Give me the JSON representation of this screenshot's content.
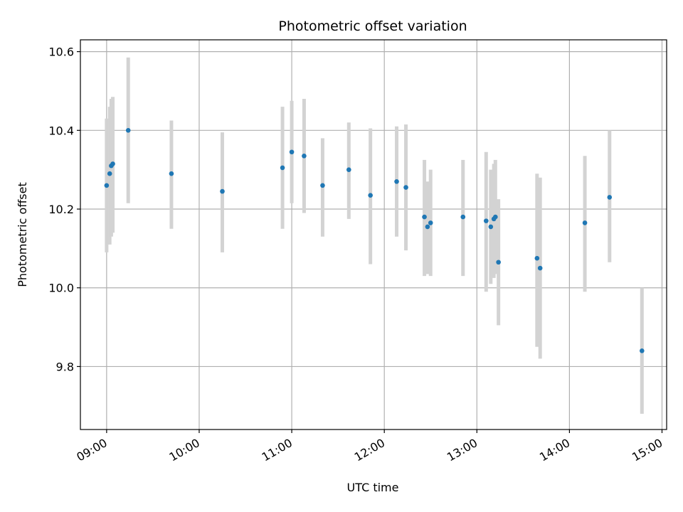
{
  "chart_data": {
    "type": "scatter",
    "title": "Photometric offset variation",
    "xlabel": "UTC time",
    "ylabel": "Photometric offset",
    "x_ticks": [
      "09:00",
      "10:00",
      "11:00",
      "12:00",
      "13:00",
      "14:00",
      "15:00"
    ],
    "y_ticks": [
      "9.8",
      "10.0",
      "10.2",
      "10.4",
      "10.6"
    ],
    "y_tick_values": [
      9.8,
      10.0,
      10.2,
      10.4,
      10.6
    ],
    "xlim": [
      "08:43",
      "15:03"
    ],
    "ylim": [
      9.64,
      10.63
    ],
    "grid": true,
    "marker_color": "#1f77b4",
    "errorbar_color": "#d3d3d3",
    "points": [
      {
        "x": "09:00",
        "y": 10.26,
        "ylow": 10.09,
        "yhigh": 10.43
      },
      {
        "x": "09:02",
        "y": 10.29,
        "ylow": 10.11,
        "yhigh": 10.46
      },
      {
        "x": "09:03",
        "y": 10.31,
        "ylow": 10.13,
        "yhigh": 10.48
      },
      {
        "x": "09:04",
        "y": 10.315,
        "ylow": 10.14,
        "yhigh": 10.485
      },
      {
        "x": "09:14",
        "y": 10.4,
        "ylow": 10.215,
        "yhigh": 10.585
      },
      {
        "x": "09:42",
        "y": 10.29,
        "ylow": 10.15,
        "yhigh": 10.425
      },
      {
        "x": "10:15",
        "y": 10.245,
        "ylow": 10.09,
        "yhigh": 10.395
      },
      {
        "x": "10:54",
        "y": 10.305,
        "ylow": 10.15,
        "yhigh": 10.46
      },
      {
        "x": "11:00",
        "y": 10.345,
        "ylow": 10.215,
        "yhigh": 10.475
      },
      {
        "x": "11:08",
        "y": 10.335,
        "ylow": 10.19,
        "yhigh": 10.48
      },
      {
        "x": "11:20",
        "y": 10.26,
        "ylow": 10.13,
        "yhigh": 10.38
      },
      {
        "x": "11:37",
        "y": 10.3,
        "ylow": 10.175,
        "yhigh": 10.42
      },
      {
        "x": "11:51",
        "y": 10.235,
        "ylow": 10.06,
        "yhigh": 10.405
      },
      {
        "x": "12:08",
        "y": 10.27,
        "ylow": 10.13,
        "yhigh": 10.41
      },
      {
        "x": "12:14",
        "y": 10.255,
        "ylow": 10.095,
        "yhigh": 10.415
      },
      {
        "x": "12:26",
        "y": 10.18,
        "ylow": 10.03,
        "yhigh": 10.325
      },
      {
        "x": "12:28",
        "y": 10.155,
        "ylow": 10.035,
        "yhigh": 10.27
      },
      {
        "x": "12:30",
        "y": 10.165,
        "ylow": 10.03,
        "yhigh": 10.3
      },
      {
        "x": "12:51",
        "y": 10.18,
        "ylow": 10.03,
        "yhigh": 10.325
      },
      {
        "x": "13:06",
        "y": 10.17,
        "ylow": 9.99,
        "yhigh": 10.345
      },
      {
        "x": "13:09",
        "y": 10.155,
        "ylow": 10.01,
        "yhigh": 10.3
      },
      {
        "x": "13:11",
        "y": 10.175,
        "ylow": 10.025,
        "yhigh": 10.315
      },
      {
        "x": "13:12",
        "y": 10.18,
        "ylow": 10.035,
        "yhigh": 10.325
      },
      {
        "x": "13:14",
        "y": 10.065,
        "ylow": 9.905,
        "yhigh": 10.225
      },
      {
        "x": "13:39",
        "y": 10.075,
        "ylow": 9.85,
        "yhigh": 10.29
      },
      {
        "x": "13:41",
        "y": 10.05,
        "ylow": 9.82,
        "yhigh": 10.28
      },
      {
        "x": "14:10",
        "y": 10.165,
        "ylow": 9.99,
        "yhigh": 10.335
      },
      {
        "x": "14:26",
        "y": 10.23,
        "ylow": 10.065,
        "yhigh": 10.4
      },
      {
        "x": "14:47",
        "y": 9.84,
        "ylow": 9.68,
        "yhigh": 10.0
      }
    ]
  }
}
